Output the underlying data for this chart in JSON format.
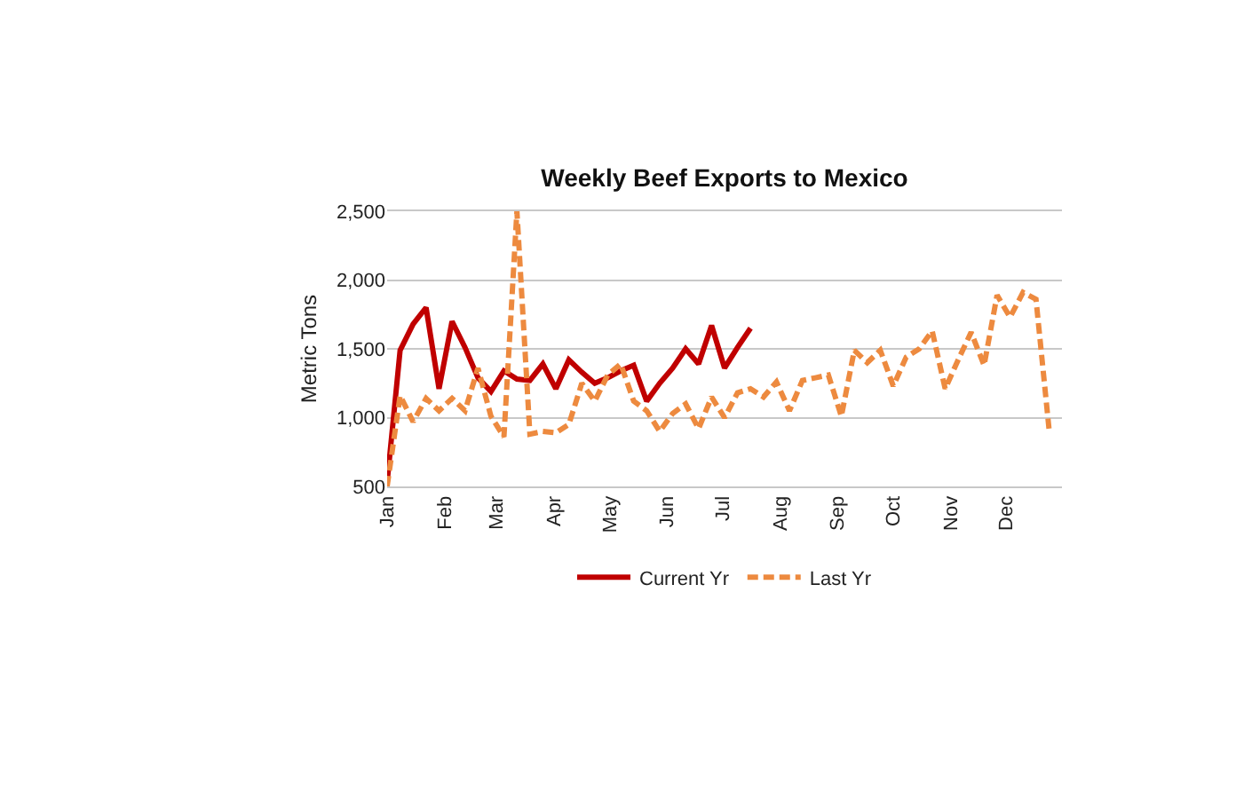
{
  "chart_data": {
    "type": "line",
    "title": "Weekly Beef Exports to Mexico",
    "ylabel": "Metric Tons",
    "x": [
      "--01-01",
      "--01-08",
      "--01-15",
      "--01-22",
      "--01-29",
      "--02-05",
      "--02-12",
      "--02-19",
      "--02-26",
      "--03-05",
      "--03-12",
      "--03-19",
      "--03-26",
      "--04-02",
      "--04-09",
      "--04-16",
      "--04-23",
      "--04-30",
      "--05-07",
      "--05-14",
      "--05-21",
      "--05-28",
      "--06-04",
      "--06-11",
      "--06-18",
      "--06-25",
      "--07-02",
      "--07-09",
      "--07-16",
      "--07-23",
      "--07-30",
      "--08-06",
      "--08-13",
      "--08-20",
      "--08-27",
      "--09-03",
      "--09-10",
      "--09-17",
      "--09-24",
      "--10-01",
      "--10-08",
      "--10-15",
      "--10-22",
      "--10-29",
      "--11-05",
      "--11-12",
      "--11-19",
      "--11-26",
      "--12-03",
      "--12-10",
      "--12-17",
      "--12-24"
    ],
    "series": [
      {
        "name": "Current Yr",
        "color": "#c00000",
        "line_style": "solid",
        "x": [
          "--01-01",
          "--01-08",
          "--01-15",
          "--01-22",
          "--01-29",
          "--02-05",
          "--02-12",
          "--02-19",
          "--02-26",
          "--03-05",
          "--03-12",
          "--03-19",
          "--03-26",
          "--04-02",
          "--04-09",
          "--04-16",
          "--04-23",
          "--04-30",
          "--05-07",
          "--05-14",
          "--05-21",
          "--05-28",
          "--06-04",
          "--06-11",
          "--06-18",
          "--06-25",
          "--07-02",
          "--07-09",
          "--07-16"
        ],
        "values": [
          530,
          1490,
          1680,
          1800,
          1210,
          1700,
          1510,
          1290,
          1190,
          1340,
          1280,
          1270,
          1390,
          1210,
          1420,
          1330,
          1250,
          1290,
          1340,
          1380,
          1120,
          1250,
          1360,
          1500,
          1390,
          1670,
          1360,
          1510,
          1650
        ]
      },
      {
        "name": "Last Yr",
        "color": "#ed8a3f",
        "line_style": "dashed",
        "values": [
          500,
          1160,
          970,
          1140,
          1050,
          1140,
          1050,
          1360,
          1010,
          860,
          2500,
          880,
          900,
          890,
          950,
          1250,
          1120,
          1310,
          1390,
          1120,
          1050,
          900,
          1030,
          1100,
          920,
          1150,
          1000,
          1180,
          1210,
          1150,
          1260,
          1050,
          1270,
          1290,
          1310,
          1010,
          1490,
          1400,
          1490,
          1230,
          1440,
          1500,
          1630,
          1210,
          1420,
          1620,
          1380,
          1890,
          1730,
          1910,
          1860,
          920
        ]
      }
    ],
    "xlim": [
      "--01-01",
      "--12-31"
    ],
    "xticks": [
      {
        "value": "--01-01",
        "label": "Jan"
      },
      {
        "value": "--02-01",
        "label": "Feb"
      },
      {
        "value": "--03-01",
        "label": "Mar"
      },
      {
        "value": "--04-01",
        "label": "Apr"
      },
      {
        "value": "--05-01",
        "label": "May"
      },
      {
        "value": "--06-01",
        "label": "Jun"
      },
      {
        "value": "--07-01",
        "label": "Jul"
      },
      {
        "value": "--08-01",
        "label": "Aug"
      },
      {
        "value": "--09-01",
        "label": "Sep"
      },
      {
        "value": "--10-01",
        "label": "Oct"
      },
      {
        "value": "--11-01",
        "label": "Nov"
      },
      {
        "value": "--12-01",
        "label": "Dec"
      }
    ],
    "ylim": [
      500,
      2500
    ],
    "yticks": [
      {
        "value": 500,
        "label": "500"
      },
      {
        "value": 1000,
        "label": "1,000"
      },
      {
        "value": 1500,
        "label": "1,500"
      },
      {
        "value": 2000,
        "label": "2,000"
      },
      {
        "value": 2500,
        "label": "2,500"
      }
    ],
    "grid": "y",
    "legend": "bottom",
    "marker": "none"
  }
}
